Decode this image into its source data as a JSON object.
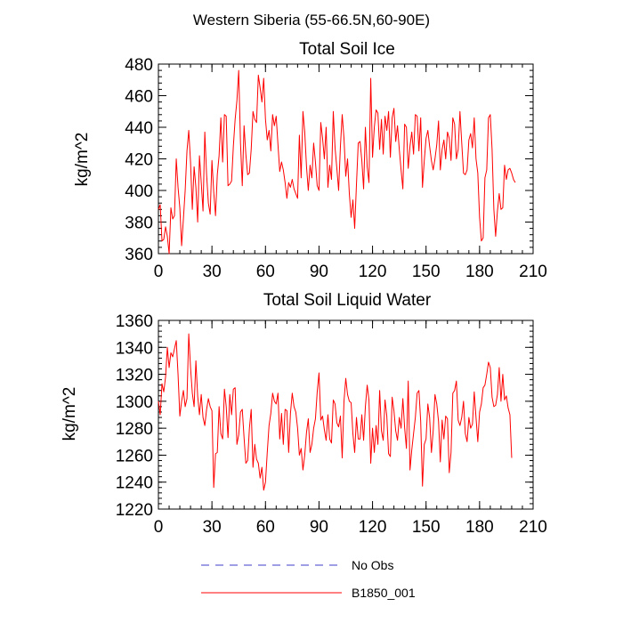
{
  "figure_title": "Western Siberia (55-66.5N,60-90E)",
  "legend": [
    {
      "label": "No Obs",
      "color": "#3c3cc8",
      "dashed": true
    },
    {
      "label": "B1850_001",
      "color": "#ff0000",
      "dashed": false
    }
  ],
  "chart_data": [
    {
      "type": "line",
      "title": "Total Soil Ice",
      "xlabel": "",
      "ylabel": "kg/m^2",
      "xlim": [
        0,
        210
      ],
      "ylim": [
        360,
        480
      ],
      "xticks": [
        0,
        30,
        60,
        90,
        120,
        150,
        180,
        210
      ],
      "yticks": [
        360,
        380,
        400,
        420,
        440,
        460,
        480
      ],
      "series": [
        {
          "name": "B1850_001",
          "color": "#ff0000",
          "values": [
            388,
            391,
            368,
            369,
            377,
            371,
            360,
            389,
            382,
            384,
            420,
            402,
            389,
            365,
            382,
            400,
            425,
            438,
            418,
            388,
            415,
            402,
            380,
            422,
            405,
            387,
            437,
            410,
            392,
            385,
            419,
            399,
            384,
            410,
            422,
            446,
            418,
            448,
            447,
            403,
            404,
            406,
            428,
            445,
            457,
            476,
            430,
            403,
            441,
            423,
            410,
            411,
            426,
            450,
            445,
            443,
            473,
            465,
            456,
            471,
            445,
            432,
            438,
            425,
            448,
            441,
            447,
            429,
            412,
            418,
            413,
            405,
            395,
            405,
            402,
            407,
            401,
            398,
            395,
            435,
            408,
            450,
            437,
            415,
            400,
            416,
            408,
            430,
            418,
            403,
            400,
            443,
            433,
            420,
            440,
            402,
            416,
            407,
            450,
            427,
            414,
            400,
            428,
            448,
            433,
            409,
            420,
            398,
            383,
            394,
            376,
            404,
            430,
            431,
            419,
            401,
            440,
            415,
            405,
            471,
            421,
            440,
            451,
            449,
            426,
            445,
            423,
            447,
            438,
            450,
            421,
            446,
            452,
            431,
            441,
            426,
            413,
            401,
            442,
            440,
            414,
            428,
            437,
            423,
            448,
            447,
            425,
            446,
            402,
            419,
            433,
            438,
            428,
            419,
            413,
            420,
            429,
            444,
            413,
            426,
            432,
            420,
            437,
            433,
            419,
            446,
            442,
            420,
            426,
            450,
            430,
            411,
            410,
            413,
            432,
            436,
            427,
            446,
            420,
            411,
            383,
            368,
            370,
            408,
            413,
            446,
            448,
            426,
            388,
            371,
            387,
            398,
            388,
            389,
            416,
            407,
            413,
            414,
            411,
            407,
            405
          ]
        }
      ]
    },
    {
      "type": "line",
      "title": "Total Soil Liquid Water",
      "xlabel": "",
      "ylabel": "kg/m^2",
      "xlim": [
        0,
        210
      ],
      "ylim": [
        1220,
        1360
      ],
      "xticks": [
        0,
        30,
        60,
        90,
        120,
        150,
        180,
        210
      ],
      "yticks": [
        1220,
        1240,
        1260,
        1280,
        1300,
        1320,
        1340,
        1360
      ],
      "series": [
        {
          "name": "B1850_001",
          "color": "#ff0000",
          "values": [
            1300,
            1290,
            1313,
            1307,
            1318,
            1340,
            1325,
            1336,
            1333,
            1339,
            1345,
            1320,
            1289,
            1300,
            1308,
            1296,
            1302,
            1350,
            1325,
            1306,
            1296,
            1330,
            1304,
            1290,
            1305,
            1288,
            1282,
            1294,
            1302,
            1296,
            1293,
            1236,
            1261,
            1262,
            1296,
            1276,
            1272,
            1309,
            1296,
            1273,
            1305,
            1290,
            1309,
            1310,
            1268,
            1275,
            1292,
            1294,
            1273,
            1254,
            1256,
            1280,
            1294,
            1251,
            1268,
            1257,
            1254,
            1243,
            1251,
            1234,
            1240,
            1262,
            1282,
            1291,
            1306,
            1300,
            1298,
            1306,
            1272,
            1291,
            1268,
            1294,
            1293,
            1262,
            1291,
            1306,
            1296,
            1292,
            1280,
            1260,
            1265,
            1249,
            1260,
            1277,
            1287,
            1262,
            1268,
            1280,
            1287,
            1307,
            1321,
            1286,
            1289,
            1279,
            1271,
            1290,
            1272,
            1269,
            1301,
            1298,
            1284,
            1281,
            1289,
            1258,
            1300,
            1317,
            1305,
            1300,
            1299,
            1276,
            1262,
            1288,
            1272,
            1272,
            1290,
            1271,
            1296,
            1312,
            1301,
            1254,
            1280,
            1262,
            1282,
            1268,
            1308,
            1278,
            1271,
            1301,
            1289,
            1261,
            1259,
            1303,
            1293,
            1278,
            1271,
            1288,
            1280,
            1302,
            1280,
            1265,
            1315,
            1249,
            1264,
            1276,
            1288,
            1306,
            1308,
            1285,
            1237,
            1268,
            1272,
            1298,
            1288,
            1262,
            1278,
            1305,
            1298,
            1285,
            1255,
            1286,
            1272,
            1289,
            1287,
            1247,
            1262,
            1306,
            1308,
            1315,
            1286,
            1282,
            1288,
            1300,
            1276,
            1270,
            1288,
            1280,
            1283,
            1307,
            1288,
            1270,
            1292,
            1298,
            1310,
            1312,
            1320,
            1329,
            1325,
            1303,
            1296,
            1297,
            1305,
            1325,
            1300,
            1320,
            1301,
            1304,
            1295,
            1290,
            1258
          ]
        }
      ]
    }
  ]
}
